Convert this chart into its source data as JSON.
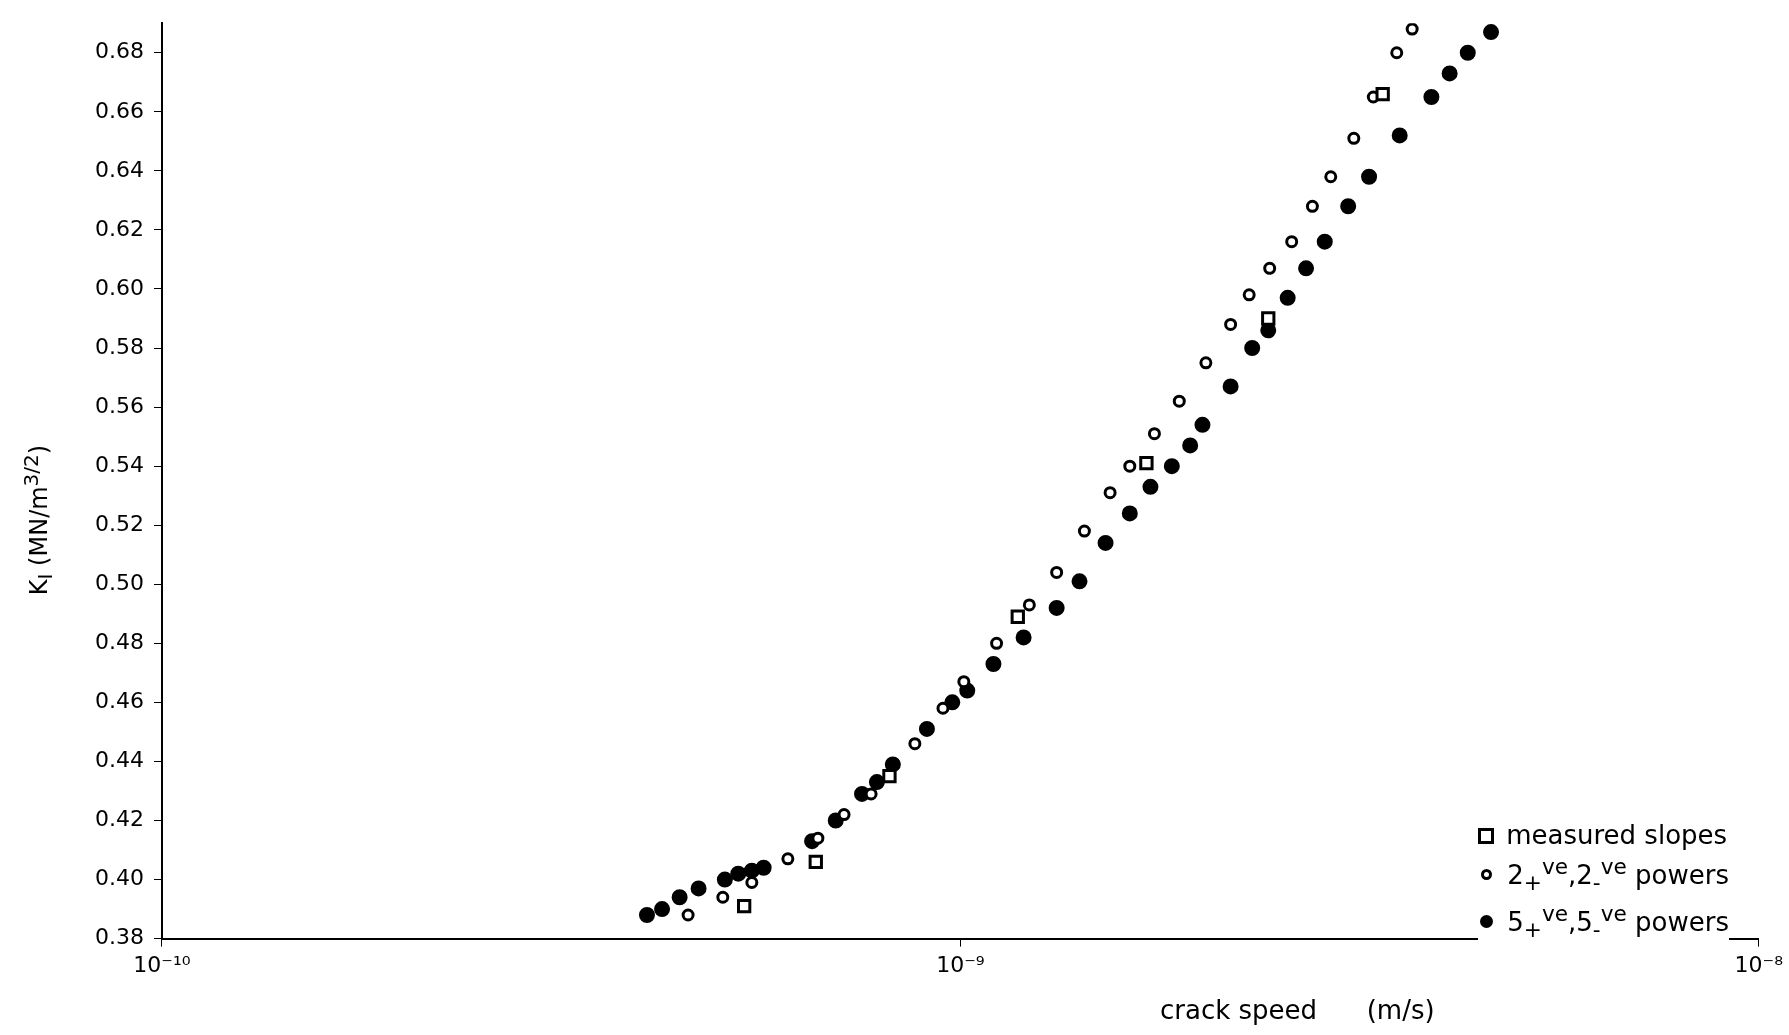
{
  "chart_data": {
    "type": "scatter",
    "xlabel": "crack speed      (m/s)",
    "ylabel": "K$_{I}$   (MN/m$^{3/2}$)",
    "log": "x",
    "xlim": [
      1e-10,
      1e-08
    ],
    "xticks": [
      {
        "value": 1e-10,
        "label": "10⁻¹⁰"
      },
      {
        "value": 1e-09,
        "label": "10⁻⁹"
      },
      {
        "value": 1e-08,
        "label": "10⁻⁸"
      }
    ],
    "ylim": [
      0.38,
      0.69
    ],
    "yticks": [
      0.38,
      {
        "value": 0.4,
        "label": "0.40"
      },
      0.42,
      0.44,
      0.46,
      0.48,
      {
        "value": 0.5,
        "label": "0.50"
      },
      0.52,
      0.54,
      0.56,
      0.58,
      {
        "value": 0.6,
        "label": "0.60"
      },
      0.62,
      0.64,
      0.66,
      0.68
    ],
    "grid": false,
    "legend": "bottom right",
    "series": [
      {
        "name": "measured slopes",
        "color": "#000000",
        "marker": "square",
        "x": [
          5.36e-10,
          6.59e-10,
          8.15e-10,
          1.18e-09,
          1.71e-09,
          2.43e-09,
          3.38e-09
        ],
        "values": [
          0.391,
          0.406,
          0.435,
          0.489,
          0.541,
          0.59,
          0.666
        ]
      },
      {
        "name": "2$_{+}$$^{ve}$,2$_{-}$$^{ve}$ powers",
        "color": "#000000",
        "marker": "circle",
        "x": [
          4.56e-10,
          5.04e-10,
          5.48e-10,
          6.08e-10,
          6.63e-10,
          7.15e-10,
          7.73e-10,
          8.77e-10,
          9.51e-10,
          1.01e-09,
          1.11e-09,
          1.22e-09,
          1.32e-09,
          1.43e-09,
          1.54e-09,
          1.63e-09,
          1.75e-09,
          1.88e-09,
          2.03e-09,
          2.18e-09,
          2.3e-09,
          2.44e-09,
          2.6e-09,
          2.76e-09,
          2.91e-09,
          3.11e-09,
          3.29e-09,
          3.52e-09,
          3.68e-09
        ],
        "values": [
          0.388,
          0.394,
          0.399,
          0.407,
          0.414,
          0.422,
          0.429,
          0.446,
          0.458,
          0.467,
          0.48,
          0.493,
          0.504,
          0.518,
          0.531,
          0.54,
          0.551,
          0.562,
          0.575,
          0.588,
          0.598,
          0.607,
          0.616,
          0.628,
          0.638,
          0.651,
          0.665,
          0.68,
          0.688
        ]
      },
      {
        "name": "5$_{+}$$^{ve}$,5$_{-}$$^{ve}$ powers",
        "color": "#000000",
        "marker": "filled-circle",
        "x": [
          4.05e-10,
          4.23e-10,
          4.45e-10,
          4.7e-10,
          5.07e-10,
          5.27e-10,
          5.48e-10,
          5.67e-10,
          6.52e-10,
          6.98e-10,
          7.53e-10,
          7.86e-10,
          8.23e-10,
          9.08e-10,
          9.77e-10,
          1.02e-09,
          1.1e-09,
          1.2e-09,
          1.32e-09,
          1.41e-09,
          1.52e-09,
          1.63e-09,
          1.73e-09,
          1.84e-09,
          1.94e-09,
          2.01e-09,
          2.18e-09,
          2.32e-09,
          2.43e-09,
          2.57e-09,
          2.71e-09,
          2.86e-09,
          3.06e-09,
          3.25e-09,
          3.55e-09,
          3.89e-09,
          4.1e-09,
          4.32e-09,
          4.62e-09
        ],
        "values": [
          0.388,
          0.39,
          0.394,
          0.397,
          0.4,
          0.402,
          0.403,
          0.404,
          0.413,
          0.42,
          0.429,
          0.433,
          0.439,
          0.451,
          0.46,
          0.464,
          0.473,
          0.482,
          0.492,
          0.501,
          0.514,
          0.524,
          0.533,
          0.54,
          0.547,
          0.554,
          0.567,
          0.58,
          0.586,
          0.597,
          0.607,
          0.616,
          0.628,
          0.638,
          0.652,
          0.665,
          0.673,
          0.68,
          0.687
        ]
      }
    ]
  }
}
